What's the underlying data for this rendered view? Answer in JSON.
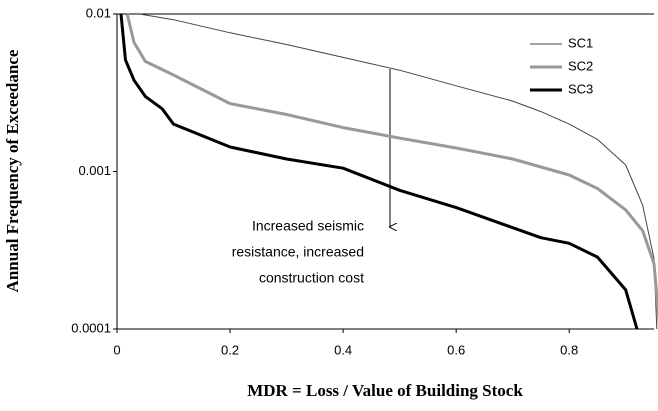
{
  "chart_data": {
    "type": "line",
    "xlabel": "MDR = Loss / Value of Building Stock",
    "ylabel": "Annual Frequency of Exceedance",
    "annotation": [
      "Increased seismic",
      "resistance, increased",
      "construction cost"
    ],
    "xlim": [
      0,
      0.95
    ],
    "xticks": [
      0,
      0.2,
      0.4,
      0.6,
      0.8
    ],
    "ylim": [
      0.0001,
      0.01
    ],
    "yticks": [
      0.0001,
      0.001,
      0.01
    ],
    "log_y": true,
    "grid": false,
    "legend": "upper right",
    "series": [
      {
        "name": "SC1",
        "color": "#444444",
        "line_width": 1,
        "x": [
          0.04,
          0.1,
          0.2,
          0.3,
          0.4,
          0.5,
          0.6,
          0.7,
          0.75,
          0.8,
          0.85,
          0.9,
          0.93,
          0.95,
          0.955
        ],
        "values": [
          0.01,
          0.0092,
          0.0076,
          0.0064,
          0.0053,
          0.0044,
          0.0035,
          0.0028,
          0.0024,
          0.002,
          0.0016,
          0.0011,
          0.00061,
          0.00028,
          0.0001
        ]
      },
      {
        "name": "SC2",
        "color": "#999999",
        "line_width": 3,
        "x": [
          0.018,
          0.03,
          0.05,
          0.1,
          0.2,
          0.3,
          0.4,
          0.5,
          0.6,
          0.7,
          0.8,
          0.85,
          0.9,
          0.93,
          0.95,
          0.96
        ],
        "values": [
          0.01,
          0.0066,
          0.005,
          0.0041,
          0.0027,
          0.0023,
          0.0019,
          0.00163,
          0.00141,
          0.0012,
          0.00095,
          0.00078,
          0.00057,
          0.00042,
          0.00026,
          0.0001
        ]
      },
      {
        "name": "SC3",
        "color": "#000000",
        "line_width": 3,
        "x": [
          0.007,
          0.015,
          0.03,
          0.05,
          0.08,
          0.1,
          0.2,
          0.3,
          0.4,
          0.5,
          0.6,
          0.7,
          0.75,
          0.8,
          0.85,
          0.9,
          0.92
        ],
        "values": [
          0.01,
          0.0051,
          0.0038,
          0.003,
          0.0025,
          0.002,
          0.00143,
          0.0012,
          0.00105,
          0.00076,
          0.00059,
          0.00044,
          0.00038,
          0.00035,
          0.000286,
          0.000177,
          0.0001
        ]
      }
    ]
  }
}
